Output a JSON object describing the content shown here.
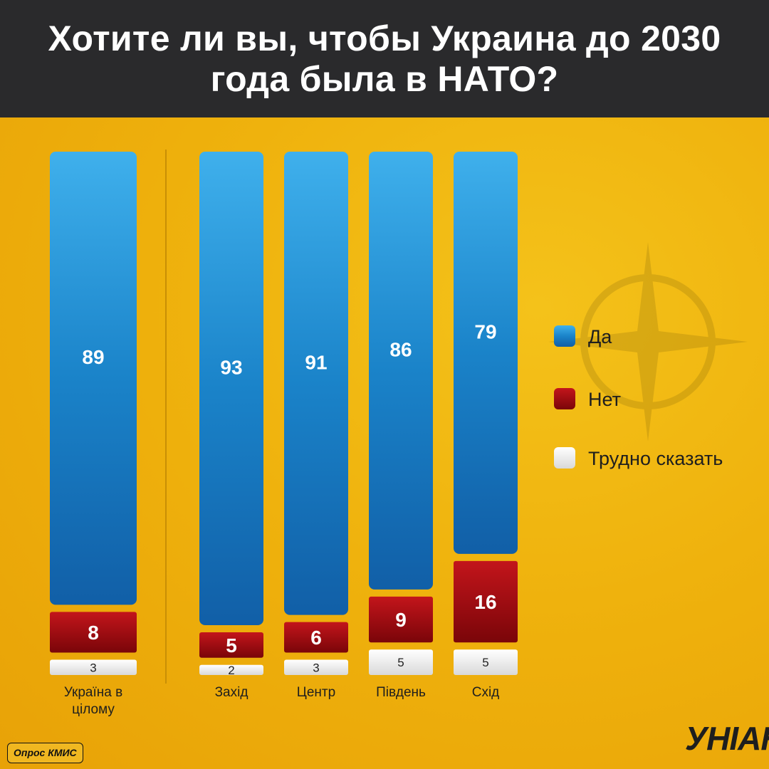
{
  "header": {
    "title": "Хотите ли вы, чтобы Украина до 2030 года была в НАТО?"
  },
  "chart_data": {
    "type": "bar",
    "stacked": true,
    "title": "Хотите ли вы, чтобы Украина до 2030 года была в НАТО?",
    "categories": [
      "Україна в цілому",
      "Захід",
      "Центр",
      "Південь",
      "Схід"
    ],
    "series": [
      {
        "name": "Да",
        "values": [
          89,
          93,
          91,
          86,
          79
        ],
        "color": "#1a83c9"
      },
      {
        "name": "Нет",
        "values": [
          8,
          5,
          6,
          9,
          16
        ],
        "color": "#9e0c10"
      },
      {
        "name": "Трудно сказать",
        "values": [
          3,
          2,
          3,
          5,
          5
        ],
        "color": "#f2f2f2"
      }
    ],
    "ylim": [
      0,
      100
    ],
    "value_labels": true,
    "legend": {
      "placement": "right"
    }
  },
  "footer": {
    "source": "Опрос КМИС",
    "logo": "УНІАН"
  }
}
